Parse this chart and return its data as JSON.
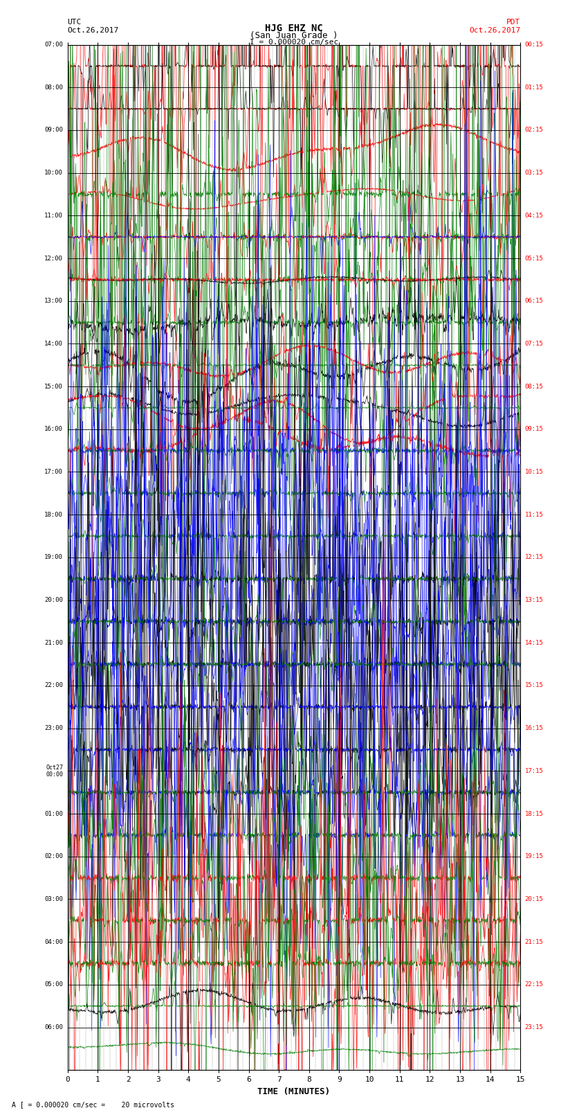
{
  "title_line1": "HJG EHZ NC",
  "title_line2": "(San Juan Grade )",
  "scale_text": "I = 0.000020 cm/sec",
  "footer_text": "A [ = 0.000020 cm/sec =    20 microvolts",
  "left_label_top": "UTC",
  "left_label_date": "Oct.26,2017",
  "right_label_top": "PDT",
  "right_label_date": "Oct.26,2017",
  "xlabel": "TIME (MINUTES)",
  "xlim": [
    0,
    15
  ],
  "xticks": [
    0,
    1,
    2,
    3,
    4,
    5,
    6,
    7,
    8,
    9,
    10,
    11,
    12,
    13,
    14,
    15
  ],
  "utc_times": [
    "07:00",
    "08:00",
    "09:00",
    "10:00",
    "11:00",
    "12:00",
    "13:00",
    "14:00",
    "15:00",
    "16:00",
    "17:00",
    "18:00",
    "19:00",
    "20:00",
    "21:00",
    "22:00",
    "23:00",
    "Oct27\n00:00",
    "01:00",
    "02:00",
    "03:00",
    "04:00",
    "05:00",
    "06:00"
  ],
  "pdt_times": [
    "00:15",
    "01:15",
    "02:15",
    "03:15",
    "04:15",
    "05:15",
    "06:15",
    "07:15",
    "08:15",
    "09:15",
    "10:15",
    "11:15",
    "12:15",
    "13:15",
    "14:15",
    "15:15",
    "16:15",
    "17:15",
    "18:15",
    "19:15",
    "20:15",
    "21:15",
    "22:15",
    "23:15"
  ],
  "n_rows": 24,
  "bg_color": "#ffffff",
  "grid_major_color": "#000000",
  "grid_minor_color": "#aaaaaa",
  "line_width": 0.5
}
